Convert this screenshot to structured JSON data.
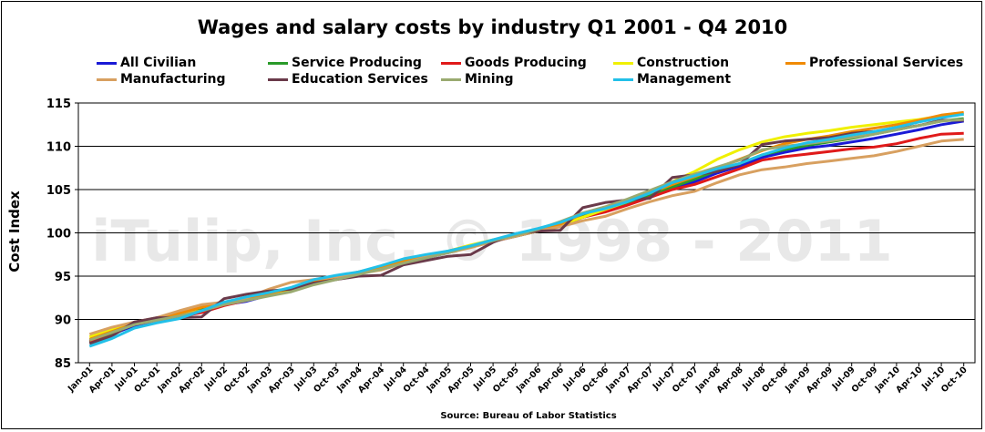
{
  "watermark": "iTulip, Inc. © 1998 - 2011",
  "colors": {
    "grid": "#000000",
    "axis": "#000000",
    "watermark": "#e8e8e8"
  },
  "chart_data": {
    "type": "line",
    "title": "Wages and salary costs by industry Q1 2001 - Q4 2010",
    "ylabel": "Cost Index",
    "xlabel": "",
    "source": "Source: Bureau of Labor Statistics",
    "ylim": [
      85,
      115
    ],
    "yticks": [
      85,
      90,
      95,
      100,
      105,
      110,
      115
    ],
    "grid": "horizontal",
    "legend_position": "top",
    "categories": [
      "Jan-01",
      "Apr-01",
      "Jul-01",
      "Oct-01",
      "Jan-02",
      "Apr-02",
      "Jul-02",
      "Oct-02",
      "Jan-03",
      "Apr-03",
      "Jul-03",
      "Oct-03",
      "Jan-04",
      "Apr-04",
      "Jul-04",
      "Oct-04",
      "Jan-05",
      "Apr-05",
      "Jul-05",
      "Oct-05",
      "Jan-06",
      "Apr-06",
      "Jul-06",
      "Oct-06",
      "Jan-07",
      "Apr-07",
      "Jul-07",
      "Oct-07",
      "Jan-08",
      "Apr-08",
      "Jul-08",
      "Oct-08",
      "Jan-09",
      "Apr-09",
      "Jul-09",
      "Oct-09",
      "Jan-10",
      "Apr-10",
      "Jul-10",
      "Oct-10"
    ],
    "series": [
      {
        "name": "All Civilian",
        "color": "#1a1ad6",
        "values": [
          87.3,
          88.3,
          89.3,
          89.9,
          90.5,
          91.2,
          91.7,
          92.1,
          92.8,
          93.4,
          94.1,
          94.7,
          95.3,
          95.9,
          96.6,
          97.1,
          97.7,
          98.4,
          99.0,
          99.6,
          100.2,
          100.8,
          101.8,
          102.5,
          103.3,
          104.1,
          105.1,
          105.9,
          106.9,
          107.7,
          108.7,
          109.3,
          109.8,
          110.1,
          110.5,
          110.9,
          111.4,
          111.9,
          112.5,
          112.9
        ]
      },
      {
        "name": "Service Producing",
        "color": "#2a9a2a",
        "values": [
          87.4,
          88.4,
          89.4,
          90.0,
          90.6,
          91.3,
          91.8,
          92.2,
          92.9,
          93.5,
          94.2,
          94.8,
          95.4,
          96.0,
          96.7,
          97.2,
          97.8,
          98.5,
          99.1,
          99.6,
          100.2,
          100.8,
          101.9,
          102.6,
          103.4,
          104.3,
          105.3,
          106.2,
          107.2,
          108.0,
          109.0,
          109.6,
          110.1,
          110.5,
          110.9,
          111.4,
          111.9,
          112.4,
          112.9,
          113.2
        ]
      },
      {
        "name": "Goods Producing",
        "color": "#e01a1a",
        "values": [
          87.5,
          88.5,
          89.4,
          89.9,
          90.3,
          90.8,
          91.6,
          92.2,
          92.8,
          93.4,
          94.2,
          94.8,
          95.4,
          96.0,
          96.7,
          97.2,
          97.8,
          98.5,
          99.1,
          99.7,
          100.3,
          100.9,
          101.8,
          102.4,
          103.2,
          104.1,
          105.0,
          105.6,
          106.5,
          107.4,
          108.4,
          108.8,
          109.1,
          109.4,
          109.7,
          109.9,
          110.3,
          110.9,
          111.4,
          111.5
        ]
      },
      {
        "name": "Construction",
        "color": "#f0f000",
        "values": [
          88.0,
          88.8,
          89.6,
          90.1,
          90.6,
          91.0,
          91.8,
          92.3,
          92.8,
          93.5,
          94.1,
          94.7,
          95.3,
          95.9,
          96.6,
          97.3,
          97.9,
          98.6,
          99.2,
          99.7,
          100.2,
          100.9,
          101.8,
          102.7,
          103.6,
          104.7,
          105.9,
          107.1,
          108.5,
          109.6,
          110.5,
          111.1,
          111.5,
          111.8,
          112.2,
          112.5,
          112.8,
          113.1,
          113.5,
          113.7
        ]
      },
      {
        "name": "Professional Services",
        "color": "#f08a00",
        "values": [
          87.7,
          88.6,
          89.5,
          90.1,
          90.7,
          91.4,
          91.9,
          92.4,
          93.0,
          93.6,
          94.3,
          94.9,
          95.5,
          96.1,
          96.8,
          97.3,
          97.9,
          98.5,
          99.1,
          99.7,
          100.3,
          101.0,
          102.2,
          103.0,
          103.8,
          104.6,
          105.6,
          106.5,
          107.5,
          108.5,
          109.5,
          110.3,
          110.8,
          111.2,
          111.7,
          112.1,
          112.5,
          113.0,
          113.6,
          113.9
        ]
      },
      {
        "name": "Manufacturing",
        "color": "#d8a060",
        "values": [
          88.3,
          89.1,
          89.7,
          90.2,
          91.0,
          91.7,
          92.0,
          92.5,
          93.5,
          94.3,
          94.6,
          94.9,
          95.3,
          95.7,
          96.5,
          97.2,
          97.7,
          98.3,
          99.0,
          99.6,
          100.2,
          100.7,
          101.4,
          101.9,
          102.8,
          103.6,
          104.3,
          104.8,
          105.8,
          106.7,
          107.3,
          107.6,
          108.0,
          108.3,
          108.6,
          108.9,
          109.4,
          110.0,
          110.6,
          110.8
        ]
      },
      {
        "name": "Education Services",
        "color": "#6a3a4a",
        "values": [
          87.2,
          88.1,
          89.7,
          90.2,
          90.2,
          90.3,
          92.4,
          92.9,
          93.3,
          93.5,
          94.2,
          94.6,
          95.0,
          95.1,
          96.3,
          96.8,
          97.3,
          97.5,
          98.9,
          99.9,
          100.2,
          100.3,
          102.9,
          103.5,
          103.8,
          104.0,
          106.4,
          106.7,
          107.1,
          107.9,
          110.2,
          110.6,
          110.8,
          111.0,
          111.5,
          111.7,
          112.0,
          112.4,
          113.0,
          113.0
        ]
      },
      {
        "name": "Mining",
        "color": "#9aaa70",
        "values": [
          87.6,
          88.5,
          89.4,
          89.9,
          90.4,
          91.0,
          91.7,
          92.2,
          92.7,
          93.2,
          94.0,
          94.6,
          95.2,
          95.8,
          96.5,
          97.1,
          97.7,
          98.4,
          99.1,
          99.7,
          100.4,
          101.3,
          102.3,
          103.0,
          103.9,
          104.9,
          105.9,
          106.8,
          107.6,
          108.4,
          109.6,
          110.0,
          110.3,
          110.6,
          111.0,
          111.4,
          111.9,
          112.4,
          112.9,
          113.1
        ]
      },
      {
        "name": "Management",
        "color": "#22c0e8",
        "values": [
          86.9,
          87.8,
          89.0,
          89.6,
          90.1,
          91.0,
          92.0,
          92.6,
          93.1,
          93.7,
          94.6,
          95.1,
          95.5,
          96.2,
          97.0,
          97.5,
          97.9,
          98.5,
          99.2,
          99.9,
          100.5,
          101.2,
          102.2,
          102.8,
          103.6,
          104.6,
          105.8,
          106.6,
          107.4,
          108.0,
          109.0,
          109.8,
          110.4,
          110.8,
          111.3,
          111.7,
          112.2,
          112.8,
          113.3,
          113.7
        ]
      }
    ]
  }
}
